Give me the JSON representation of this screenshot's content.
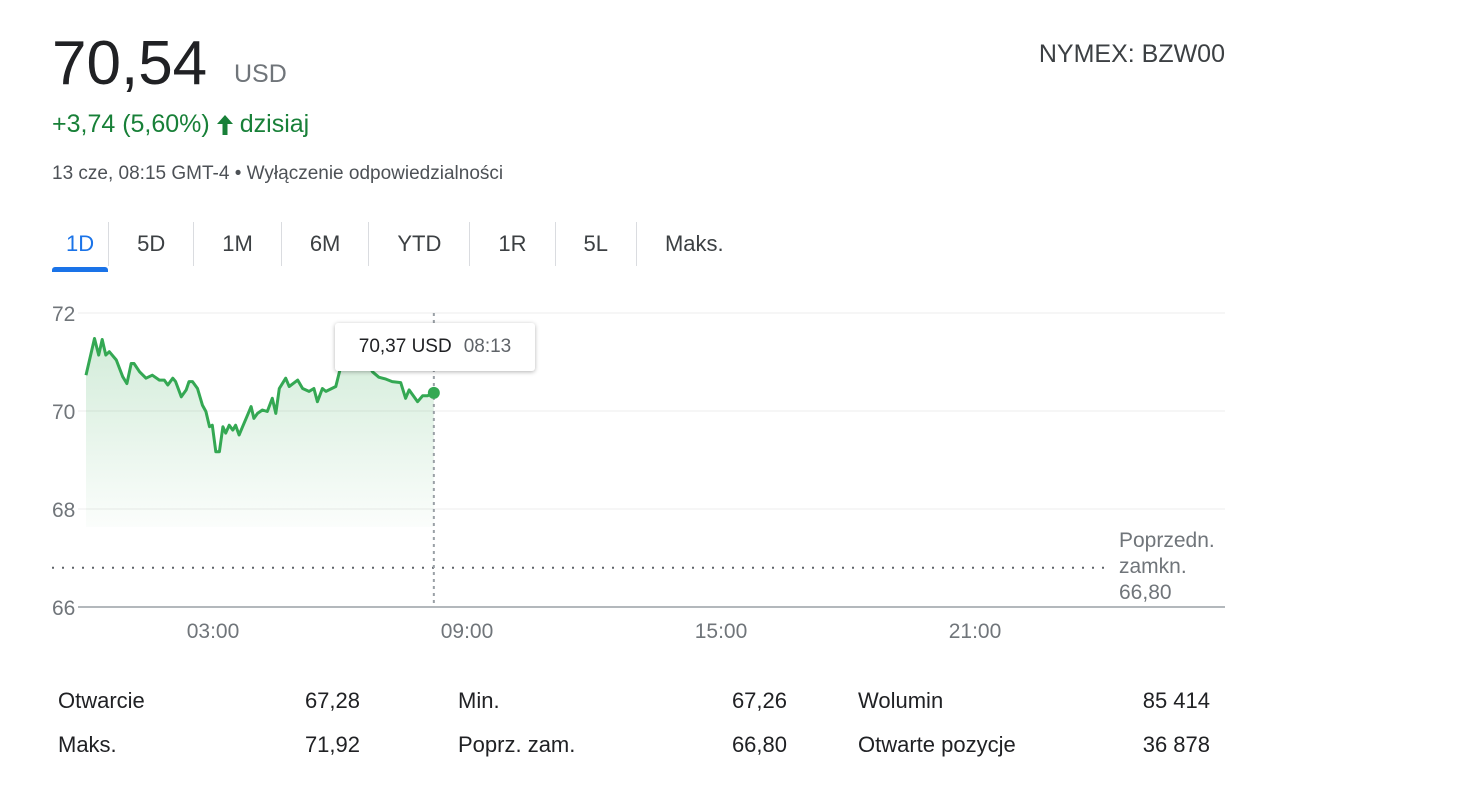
{
  "quote": {
    "price": "70,54",
    "currency": "USD",
    "exchange": "NYMEX: BZW00",
    "change": "+3,74 (5,60%)",
    "change_icon": "arrow-up-icon",
    "change_period": "dzisiaj",
    "timestamp": "13 cze, 08:15 GMT-4",
    "separator": "•",
    "disclaimer": "Wyłączenie odpowiedzialności",
    "up_color": "#188038"
  },
  "tabs": [
    {
      "label": "1D",
      "active": true
    },
    {
      "label": "5D"
    },
    {
      "label": "1M"
    },
    {
      "label": "6M"
    },
    {
      "label": "YTD"
    },
    {
      "label": "1R"
    },
    {
      "label": "5L"
    },
    {
      "label": "Maks."
    }
  ],
  "tooltip": {
    "value": "70,37 USD",
    "time": "08:13"
  },
  "previous_close": {
    "label_line1": "Poprzedn.",
    "label_line2": "zamkn.",
    "value": "66,80"
  },
  "chart_data": {
    "type": "area",
    "line_color": "#34a853",
    "y_ticks": [
      "72",
      "70",
      "68",
      "66"
    ],
    "x_ticks": [
      "03:00",
      "09:00",
      "15:00",
      "21:00"
    ],
    "ylim": [
      66,
      72
    ],
    "grid": true,
    "reference_line": 66.8,
    "points": [
      [
        "00:00",
        70.73
      ],
      [
        "00:12",
        71.48
      ],
      [
        "00:18",
        71.14
      ],
      [
        "00:23",
        71.46
      ],
      [
        "00:28",
        71.14
      ],
      [
        "00:33",
        71.21
      ],
      [
        "00:43",
        71.04
      ],
      [
        "00:52",
        70.7
      ],
      [
        "00:58",
        70.56
      ],
      [
        "01:04",
        70.97
      ],
      [
        "01:08",
        70.97
      ],
      [
        "01:16",
        70.8
      ],
      [
        "01:25",
        70.67
      ],
      [
        "01:34",
        70.73
      ],
      [
        "01:44",
        70.63
      ],
      [
        "01:51",
        70.63
      ],
      [
        "01:56",
        70.53
      ],
      [
        "02:03",
        70.67
      ],
      [
        "02:07",
        70.6
      ],
      [
        "02:15",
        70.29
      ],
      [
        "02:22",
        70.43
      ],
      [
        "02:26",
        70.6
      ],
      [
        "02:31",
        70.6
      ],
      [
        "02:38",
        70.46
      ],
      [
        "02:45",
        70.12
      ],
      [
        "02:50",
        69.99
      ],
      [
        "02:55",
        69.68
      ],
      [
        "02:59",
        69.71
      ],
      [
        "03:04",
        69.17
      ],
      [
        "03:09",
        69.17
      ],
      [
        "03:14",
        69.68
      ],
      [
        "03:18",
        69.55
      ],
      [
        "03:23",
        69.71
      ],
      [
        "03:28",
        69.61
      ],
      [
        "03:32",
        69.71
      ],
      [
        "03:37",
        69.51
      ],
      [
        "03:42",
        69.68
      ],
      [
        "03:49",
        69.92
      ],
      [
        "03:54",
        70.09
      ],
      [
        "03:58",
        69.85
      ],
      [
        "04:03",
        69.95
      ],
      [
        "04:10",
        70.02
      ],
      [
        "04:17",
        69.99
      ],
      [
        "04:24",
        70.26
      ],
      [
        "04:29",
        69.95
      ],
      [
        "04:34",
        70.46
      ],
      [
        "04:43",
        70.67
      ],
      [
        "04:48",
        70.5
      ],
      [
        "05:00",
        70.63
      ],
      [
        "05:07",
        70.46
      ],
      [
        "05:16",
        70.4
      ],
      [
        "05:23",
        70.46
      ],
      [
        "05:28",
        70.19
      ],
      [
        "05:35",
        70.46
      ],
      [
        "05:40",
        70.4
      ],
      [
        "05:54",
        70.5
      ],
      [
        "06:01",
        70.9
      ],
      [
        "06:10",
        71.05
      ],
      [
        "06:25",
        71.0
      ],
      [
        "06:40",
        70.95
      ],
      [
        "06:46",
        70.8
      ],
      [
        "06:55",
        70.69
      ],
      [
        "07:05",
        70.65
      ],
      [
        "07:14",
        70.6
      ],
      [
        "07:26",
        70.58
      ],
      [
        "07:33",
        70.26
      ],
      [
        "07:38",
        70.43
      ],
      [
        "07:50",
        70.19
      ],
      [
        "07:57",
        70.31
      ],
      [
        "08:04",
        70.31
      ],
      [
        "08:13",
        70.37
      ]
    ]
  },
  "stats": [
    [
      {
        "label": "Otwarcie",
        "value": "67,28"
      },
      {
        "label": "Min.",
        "value": "67,26"
      },
      {
        "label": "Wolumin",
        "value": "85 414"
      }
    ],
    [
      {
        "label": "Maks.",
        "value": "71,92"
      },
      {
        "label": "Poprz. zam.",
        "value": "66,80"
      },
      {
        "label": "Otwarte pozycje",
        "value": "36 878"
      }
    ]
  ]
}
